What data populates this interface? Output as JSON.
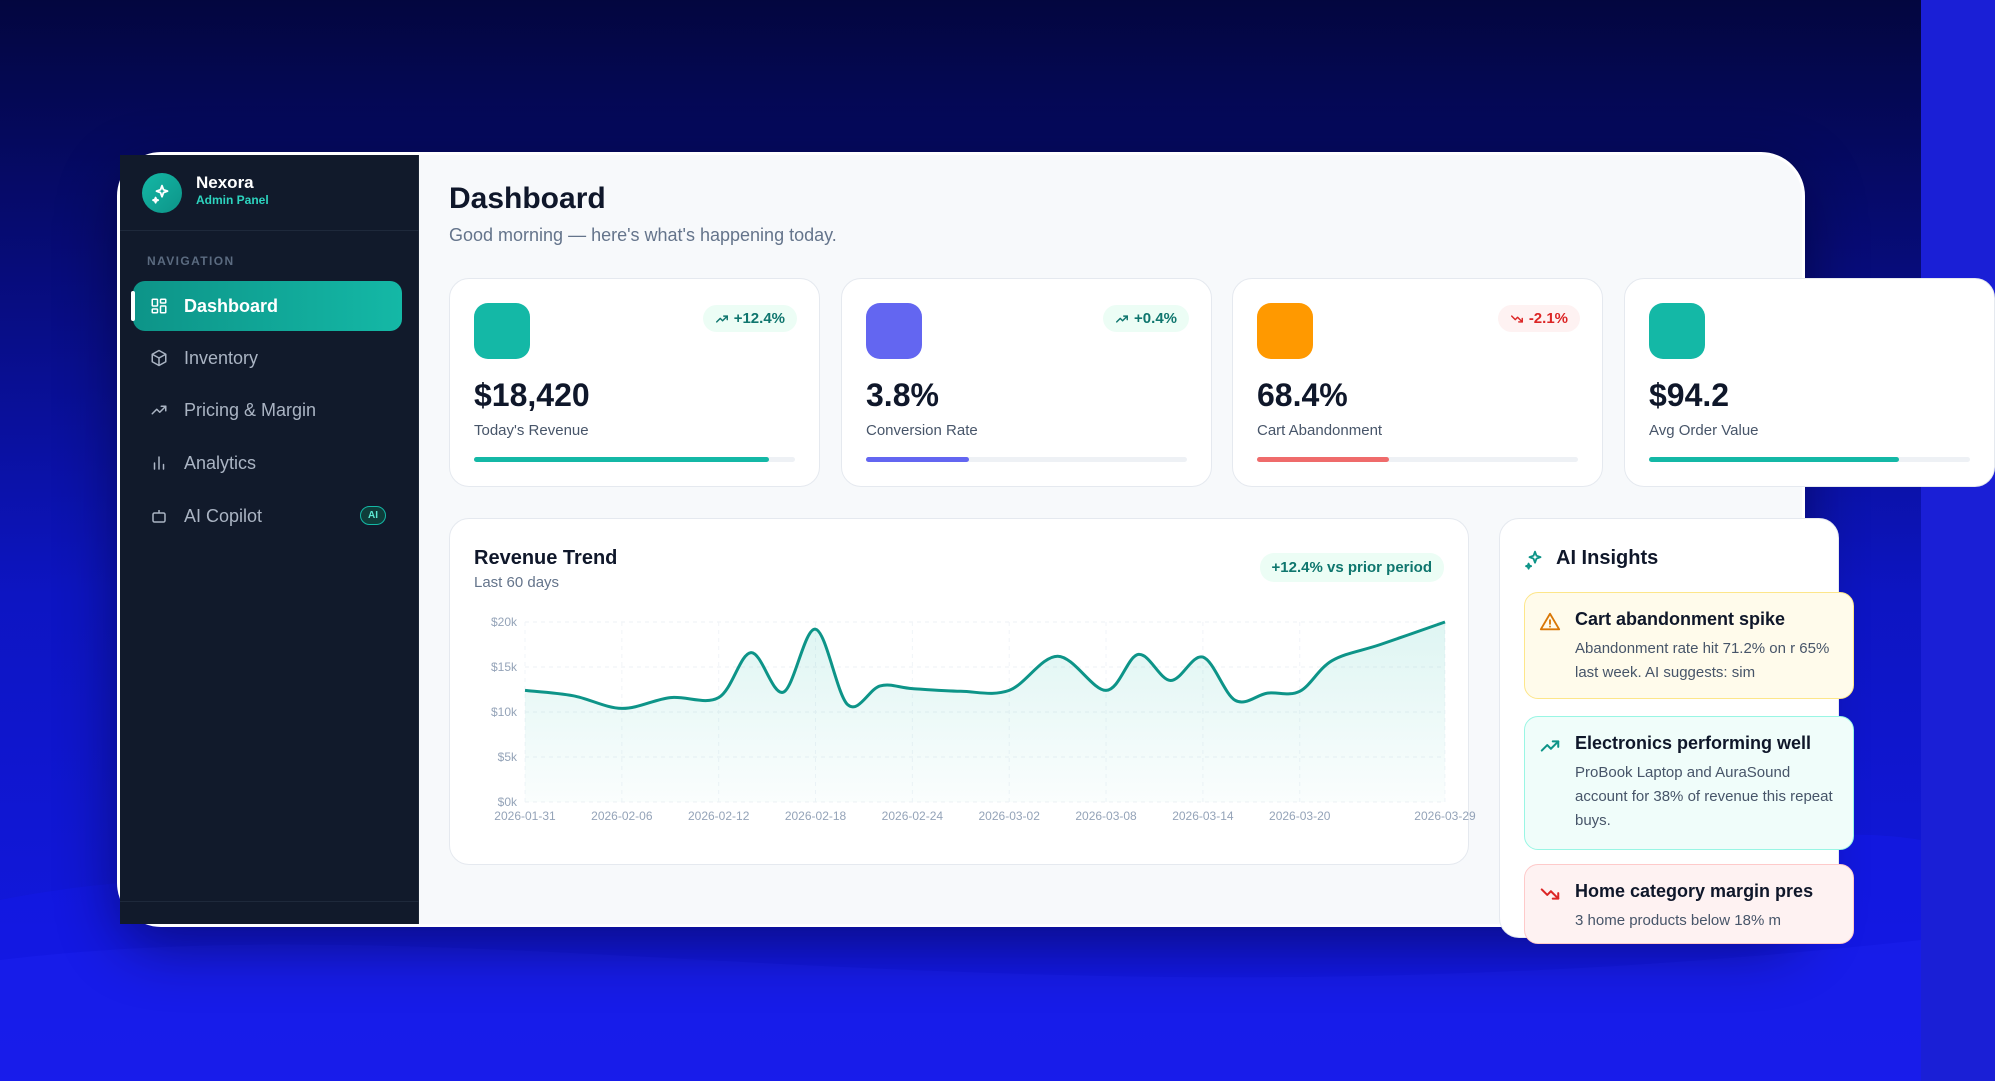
{
  "app": {
    "name": "Nexora",
    "subtitle": "Admin Panel"
  },
  "sidebar": {
    "heading": "NAVIGATION",
    "items": [
      {
        "label": "Dashboard",
        "icon": "grid-icon",
        "active": true
      },
      {
        "label": "Inventory",
        "icon": "box-icon"
      },
      {
        "label": "Pricing & Margin",
        "icon": "trending-up-icon"
      },
      {
        "label": "Analytics",
        "icon": "bar-chart-icon"
      },
      {
        "label": "AI Copilot",
        "icon": "bot-icon",
        "badge": "AI"
      }
    ]
  },
  "header": {
    "title": "Dashboard",
    "subtitle": "Good morning — here's what's happening today."
  },
  "stats": [
    {
      "value": "$18,420",
      "label": "Today's Revenue",
      "delta": "+12.4%",
      "direction": "up",
      "color": "#14b8a6",
      "progress": 0.92
    },
    {
      "value": "3.8%",
      "label": "Conversion Rate",
      "delta": "+0.4%",
      "direction": "up",
      "color": "#6366f1",
      "progress": 0.32
    },
    {
      "value": "68.4%",
      "label": "Cart Abandonment",
      "delta": "-2.1%",
      "direction": "down",
      "color": "#f59e0b",
      "bar_color": "#ef6b6b",
      "progress": 0.41
    },
    {
      "value": "$94.2",
      "label": "Avg Order Value",
      "delta": "",
      "direction": "up",
      "color": "#14b8a6",
      "progress": 0.78
    }
  ],
  "revenue": {
    "title": "Revenue Trend",
    "subtitle": "Last 60 days",
    "badge": "+12.4% vs prior period"
  },
  "chart_data": {
    "type": "area",
    "title": "Revenue Trend",
    "subtitle": "Last 60 days",
    "y_ticks": [
      "$0k",
      "$5k",
      "$10k",
      "$15k",
      "$20k"
    ],
    "ylim": [
      0,
      20000
    ],
    "x_ticks": [
      "2026-01-31",
      "2026-02-06",
      "2026-02-12",
      "2026-02-18",
      "2026-02-24",
      "2026-03-02",
      "2026-03-08",
      "2026-03-14",
      "2026-03-20",
      "2026-03-29"
    ],
    "x": [
      "2026-01-31",
      "2026-02-03",
      "2026-02-06",
      "2026-02-09",
      "2026-02-12",
      "2026-02-14",
      "2026-02-16",
      "2026-02-18",
      "2026-02-20",
      "2026-02-22",
      "2026-02-24",
      "2026-02-27",
      "2026-03-02",
      "2026-03-05",
      "2026-03-08",
      "2026-03-10",
      "2026-03-12",
      "2026-03-14",
      "2026-03-16",
      "2026-03-18",
      "2026-03-20",
      "2026-03-22",
      "2026-03-25",
      "2026-03-29"
    ],
    "values": [
      12400,
      11800,
      10400,
      11600,
      11600,
      16600,
      12200,
      19200,
      10800,
      12900,
      12600,
      12300,
      12400,
      16200,
      12400,
      16400,
      13500,
      16100,
      11300,
      12100,
      12300,
      15700,
      17500,
      20000
    ],
    "grid": true,
    "fill": true,
    "color": "#0d9488"
  },
  "insights": {
    "title": "AI Insights",
    "items": [
      {
        "kind": "warning",
        "icon": "alert-triangle-icon",
        "title": "Cart abandonment spike",
        "body": "Abandonment rate hit 71.2% on r 65% last week. AI suggests: sim"
      },
      {
        "kind": "positive",
        "icon": "trending-up-icon",
        "title": "Electronics performing well",
        "body": "ProBook Laptop and AuraSound account for 38% of revenue this repeat buys."
      },
      {
        "kind": "negative",
        "icon": "trending-down-icon",
        "title": "Home category margin pres",
        "body": "3 home products below 18% m"
      }
    ]
  }
}
